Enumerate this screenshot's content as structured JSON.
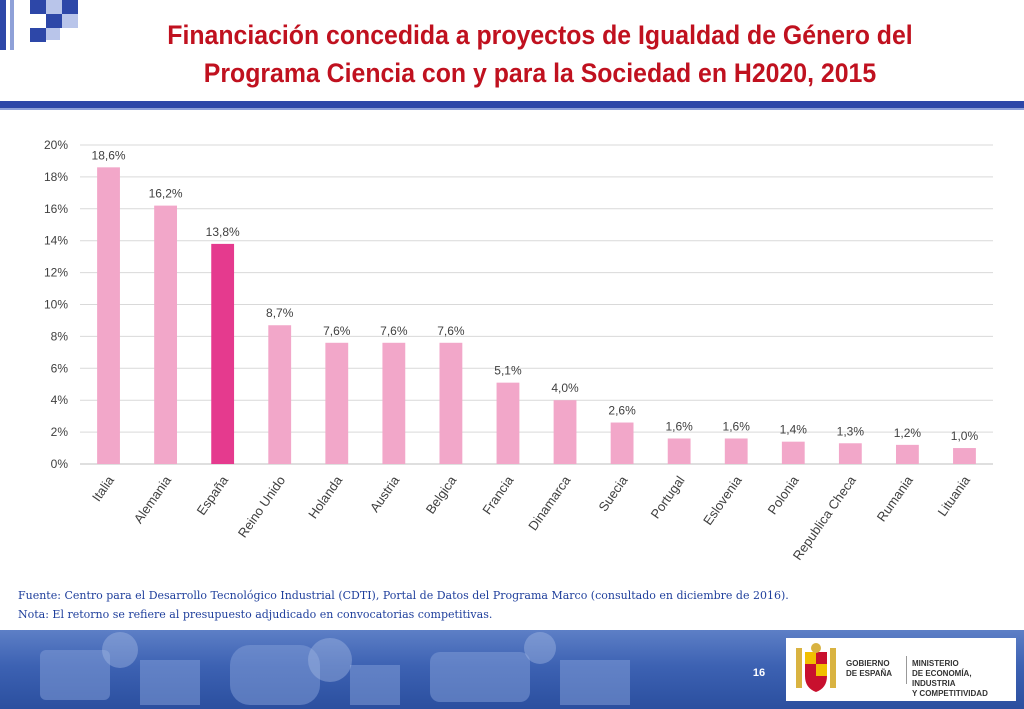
{
  "header": {
    "title_line1": "Financiación concedida a proyectos de Igualdad de Género del",
    "title_line2": "Programa Ciencia con y para la Sociedad en H2020, 2015",
    "title_color": "#c0111f",
    "rule_color": "#2d47a8"
  },
  "chart_data": {
    "type": "bar",
    "categories": [
      "Italia",
      "Alemania",
      "España",
      "Reino Unido",
      "Holanda",
      "Austria",
      "Belgica",
      "Francia",
      "Dinamarca",
      "Suecia",
      "Portugal",
      "Eslovenia",
      "Polonia",
      "Republica Checa",
      "Rumania",
      "Lituania"
    ],
    "values": [
      18.6,
      16.2,
      13.8,
      8.7,
      7.6,
      7.6,
      7.6,
      5.1,
      4.0,
      2.6,
      1.6,
      1.6,
      1.4,
      1.3,
      1.2,
      1.0
    ],
    "value_labels": [
      "18,6%",
      "16,2%",
      "13,8%",
      "8,7%",
      "7,6%",
      "7,6%",
      "7,6%",
      "5,1%",
      "4,0%",
      "2,6%",
      "1,6%",
      "1,6%",
      "1,4%",
      "1,3%",
      "1,2%",
      "1,0%"
    ],
    "ylim": [
      0,
      20
    ],
    "yticks": [
      "0%",
      "2%",
      "4%",
      "6%",
      "8%",
      "10%",
      "12%",
      "14%",
      "16%",
      "18%",
      "20%"
    ],
    "grid": true,
    "bar_color": "#f2a7c9",
    "highlight_index": 2,
    "highlight_color": "#e53a8e"
  },
  "notes": {
    "source": "Fuente: Centro para el Desarrollo Tecnológico Industrial (CDTI), Portal de Datos del Programa Marco (consultado en diciembre de 2016).",
    "note": "Nota: El retorno se refiere al presupuesto adjudicado en convocatorias competitivas."
  },
  "footer": {
    "page_number": "16",
    "gov_line1": "GOBIERNO",
    "gov_line2": "DE ESPAÑA",
    "ministry_line1": "MINISTERIO",
    "ministry_line2": "DE ECONOMÍA, INDUSTRIA",
    "ministry_line3": "Y COMPETITIVIDAD"
  }
}
